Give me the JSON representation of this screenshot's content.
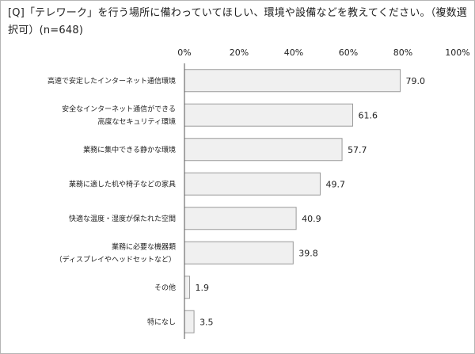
{
  "title": "[Q]「テレワーク」を行う場所に備わっていてほしい、環境や設備などを教えてください。（複数選択可）(n=648)",
  "chart_data": {
    "type": "bar",
    "orientation": "horizontal",
    "title": "[Q]「テレワーク」を行う場所に備わっていてほしい、環境や設備などを教えてください。（複数選択可）(n=648)",
    "xlim": [
      0,
      100
    ],
    "xticks": [
      "0%",
      "20%",
      "40%",
      "60%",
      "80%",
      "100%"
    ],
    "grid": false,
    "legend": "none",
    "bar_color": "#f0f0f0",
    "bar_border_color": "#9a9a9a",
    "categories": [
      [
        "高速で安定したインターネット通信環境"
      ],
      [
        "安全なインターネット通信ができる",
        "高度なセキュリティ環境"
      ],
      [
        "業務に集中できる静かな環境"
      ],
      [
        "業務に適した机や椅子などの家具"
      ],
      [
        "快適な温度・湿度が保たれた空間"
      ],
      [
        "業務に必要な機器類",
        "（ディスプレイやヘッドセットなど）"
      ],
      [
        "その他"
      ],
      [
        "特になし"
      ]
    ],
    "values": [
      79.0,
      61.6,
      57.7,
      49.7,
      40.9,
      39.8,
      1.9,
      3.5
    ],
    "value_labels": [
      "79.0",
      "61.6",
      "57.7",
      "49.7",
      "40.9",
      "39.8",
      "1.9",
      "3.5"
    ]
  }
}
